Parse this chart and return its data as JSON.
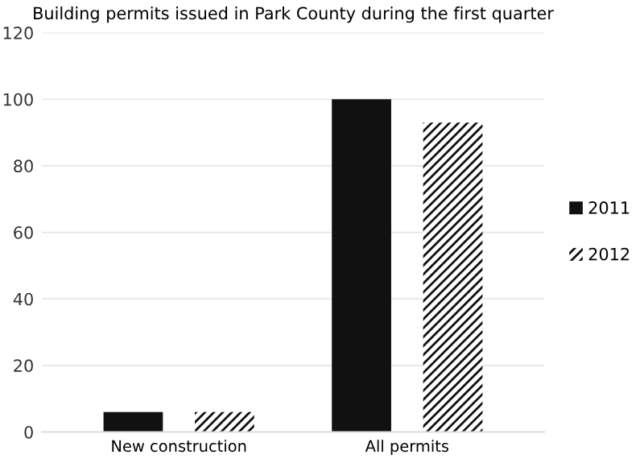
{
  "chart_data": {
    "type": "bar",
    "title": "Building permits issued in Park County during the first quarter",
    "categories": [
      "New construction",
      "All permits"
    ],
    "series": [
      {
        "name": "2011",
        "color": "#111111",
        "values": [
          6,
          100
        ]
      },
      {
        "name": "2012",
        "color": "#111111",
        "values": [
          6,
          93
        ]
      }
    ],
    "ylim": [
      0,
      120
    ],
    "yticks": [
      0,
      20,
      40,
      60,
      80,
      100,
      120
    ],
    "grid": "y",
    "legend": "right"
  }
}
